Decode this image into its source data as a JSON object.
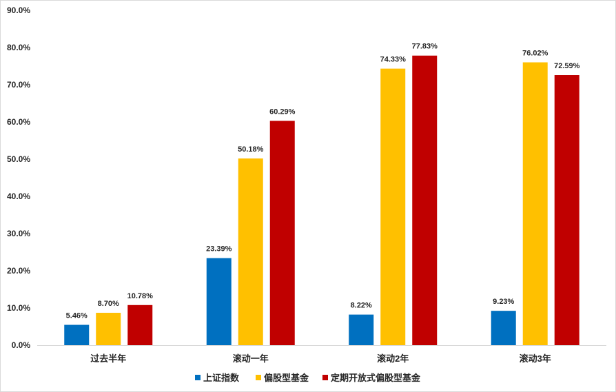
{
  "chart_data": {
    "type": "bar",
    "categories": [
      "过去半年",
      "滚动一年",
      "滚动2年",
      "滚动3年"
    ],
    "series": [
      {
        "name": "上证指数",
        "color": "#0070C0",
        "values": [
          5.46,
          23.39,
          8.22,
          9.23
        ],
        "labels": [
          "5.46%",
          "23.39%",
          "8.22%",
          "9.23%"
        ]
      },
      {
        "name": "偏股型基金",
        "color": "#FFC000",
        "values": [
          8.7,
          50.18,
          74.33,
          76.02
        ],
        "labels": [
          "8.70%",
          "50.18%",
          "74.33%",
          "76.02%"
        ]
      },
      {
        "name": "定期开放式偏股型基金",
        "color": "#C00000",
        "values": [
          10.78,
          60.29,
          77.83,
          72.59
        ],
        "labels": [
          "10.78%",
          "60.29%",
          "77.83%",
          "72.59%"
        ]
      }
    ],
    "yticks": [
      "0.0%",
      "10.0%",
      "20.0%",
      "30.0%",
      "40.0%",
      "50.0%",
      "60.0%",
      "70.0%",
      "80.0%",
      "90.0%"
    ],
    "ylim": [
      0,
      90
    ],
    "grid": false,
    "legend_position": "bottom"
  }
}
